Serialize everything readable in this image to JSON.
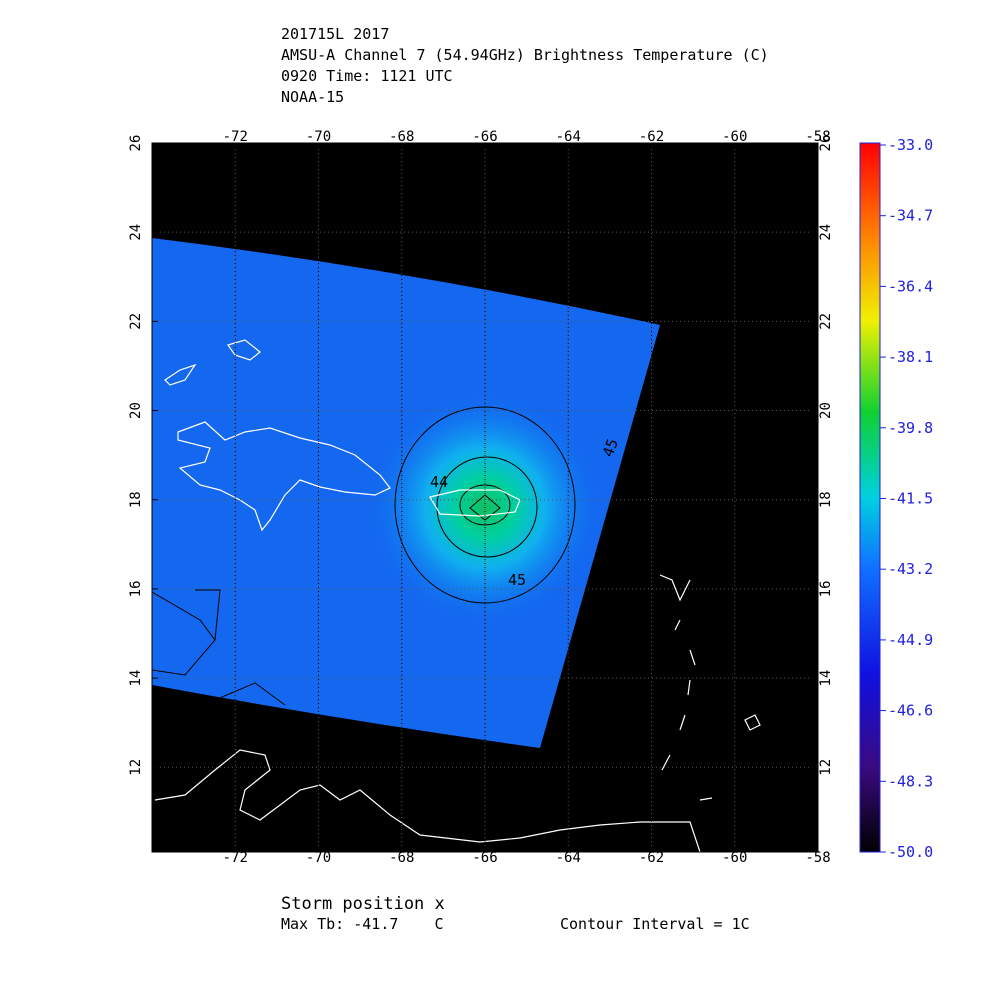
{
  "header": {
    "lines": [
      "201715L 2017",
      "AMSU-A Channel 7 (54.94GHz) Brightness Temperature (C)",
      "0920 Time: 1121 UTC",
      "NOAA-15"
    ]
  },
  "map": {
    "xlim": [
      -74,
      -58
    ],
    "ylim": [
      10.1,
      26
    ],
    "xticks": [
      -72,
      -70,
      -68,
      -66,
      -64,
      -62,
      -60,
      -58
    ],
    "yticks": [
      12,
      14,
      16,
      18,
      20,
      22,
      24,
      26
    ],
    "contour_labels": [
      "44",
      "45",
      "45"
    ]
  },
  "colorbar": {
    "lim": [
      -50,
      -33
    ],
    "ticks": [
      {
        "value": -33,
        "label": "-33.0"
      },
      {
        "value": -34.7,
        "label": "-34.7"
      },
      {
        "value": -36.4,
        "label": "-36.4"
      },
      {
        "value": -38.1,
        "label": "-38.1"
      },
      {
        "value": -39.8,
        "label": "-39.8"
      },
      {
        "value": -41.5,
        "label": "-41.5"
      },
      {
        "value": -43.2,
        "label": "-43.2"
      },
      {
        "value": -44.9,
        "label": "-44.9"
      },
      {
        "value": -46.6,
        "label": "-46.6"
      },
      {
        "value": -48.3,
        "label": "-48.3"
      },
      {
        "value": -50,
        "label": "-50.0"
      }
    ]
  },
  "footer": {
    "storm_position": "Storm position x",
    "max_tb": "Max Tb: -41.7    C",
    "contour_interval": "Contour Interval = 1C"
  }
}
